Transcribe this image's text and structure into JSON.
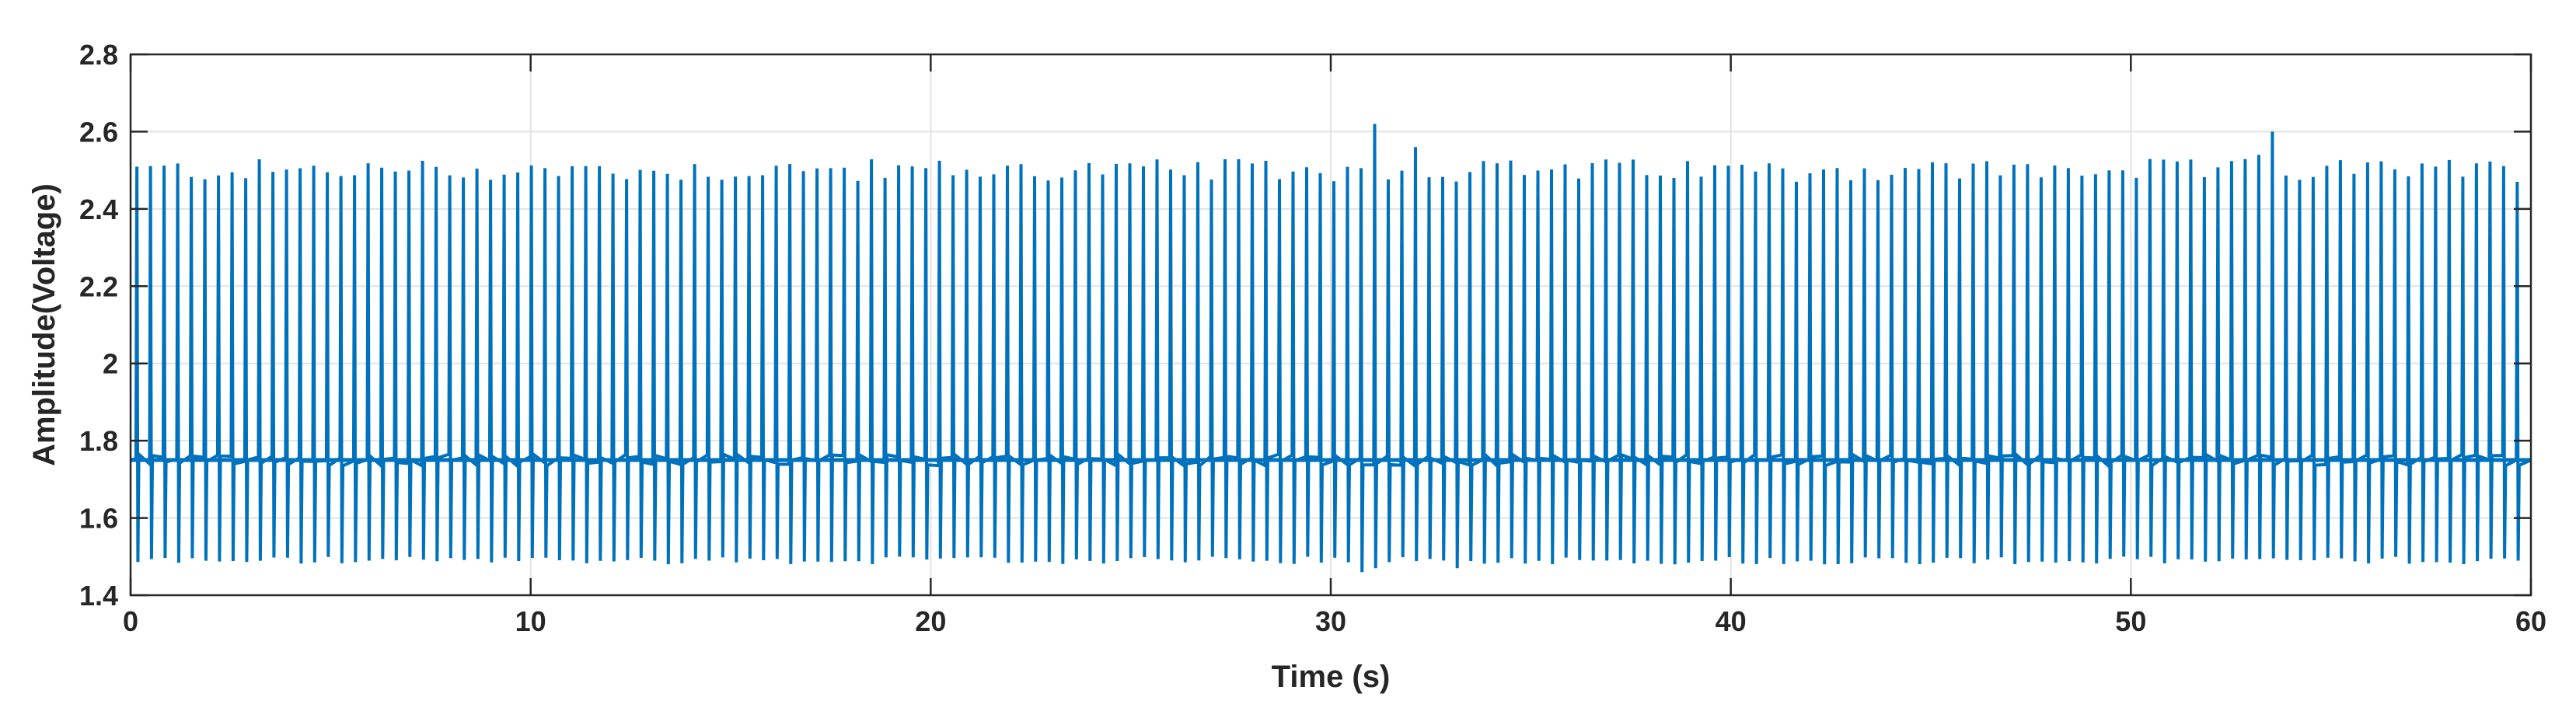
{
  "chart_data": {
    "type": "line",
    "title": "",
    "xlabel": "Time (s)",
    "ylabel": "Amplitude(Voltage)",
    "xlim": [
      0,
      60
    ],
    "ylim": [
      1.4,
      2.8
    ],
    "xticks": [
      0,
      10,
      20,
      30,
      40,
      50,
      60
    ],
    "xtick_labels": [
      "0",
      "10",
      "20",
      "30",
      "40",
      "50",
      "60"
    ],
    "yticks": [
      1.4,
      1.6,
      1.8,
      2.0,
      2.2,
      2.4,
      2.6,
      2.8
    ],
    "ytick_labels": [
      "1.4",
      "1.6",
      "1.8",
      "2",
      "2.2",
      "2.4",
      "2.6",
      "2.8"
    ],
    "grid": true,
    "line_color": "#0072BD",
    "series": [
      {
        "baseline": 1.75,
        "peak_typical": 2.5,
        "trough_typical": 1.49,
        "pulse_period_s": 0.34,
        "pulse_count": 176,
        "notable_peaks": [
          {
            "x": 31.1,
            "y": 2.62
          },
          {
            "x": 53.4,
            "y": 2.6
          },
          {
            "x": 31.8,
            "y": 2.56
          },
          {
            "x": 53.1,
            "y": 2.54
          }
        ],
        "notable_troughs": [
          {
            "x": 30.5,
            "y": 1.46
          },
          {
            "x": 30.8,
            "y": 1.47
          },
          {
            "x": 33.0,
            "y": 1.47
          }
        ]
      }
    ]
  }
}
